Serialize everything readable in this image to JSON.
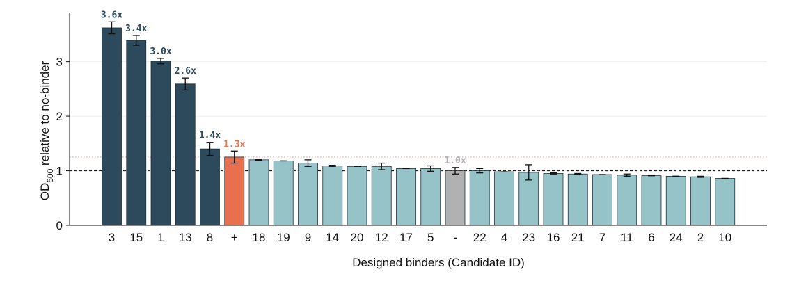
{
  "chart_data": {
    "type": "bar",
    "title": "",
    "xlabel": "Designed binders (Candidate ID)",
    "ylabel": {
      "prefix": "OD",
      "subscript": "600",
      "suffix": " relative to no-binder"
    },
    "ylim": [
      0,
      3.9
    ],
    "yticks": [
      0,
      1,
      2,
      3
    ],
    "grid": "horizontal, light",
    "reference_lines": [
      {
        "y": 1.0,
        "style": "dashed",
        "color": "#222222"
      },
      {
        "y": 1.25,
        "style": "dotted",
        "color": "#E8A0A0"
      }
    ],
    "categories": [
      "3",
      "15",
      "1",
      "13",
      "8",
      "+",
      "18",
      "19",
      "9",
      "14",
      "20",
      "12",
      "17",
      "5",
      "-",
      "22",
      "4",
      "23",
      "16",
      "21",
      "7",
      "11",
      "6",
      "24",
      "2",
      "10"
    ],
    "values": [
      3.62,
      3.39,
      3.01,
      2.59,
      1.4,
      1.25,
      1.2,
      1.18,
      1.14,
      1.09,
      1.08,
      1.08,
      1.04,
      1.04,
      1.0,
      1.0,
      0.98,
      0.97,
      0.95,
      0.94,
      0.93,
      0.92,
      0.91,
      0.9,
      0.89,
      0.86
    ],
    "errors": [
      0.11,
      0.09,
      0.05,
      0.11,
      0.12,
      0.11,
      0.01,
      0.0,
      0.06,
      0.01,
      0.0,
      0.06,
      0.0,
      0.05,
      0.06,
      0.04,
      0.0,
      0.14,
      0.01,
      0.01,
      0.0,
      0.02,
      0.0,
      0.0,
      0.01,
      0.0
    ],
    "groups": [
      "hit",
      "hit",
      "hit",
      "hit",
      "hit",
      "positive",
      "other",
      "other",
      "other",
      "other",
      "other",
      "other",
      "other",
      "other",
      "negative",
      "other",
      "other",
      "other",
      "other",
      "other",
      "other",
      "other",
      "other",
      "other",
      "other",
      "other"
    ],
    "colors": {
      "hit": "#2C4A5C",
      "positive": "#E8704F",
      "negative": "#B1B1B1",
      "other": "#95C3C7"
    },
    "annotations": [
      {
        "category": "3",
        "text": "3.6x",
        "color": "#2C4A5C"
      },
      {
        "category": "15",
        "text": "3.4x",
        "color": "#2C4A5C"
      },
      {
        "category": "1",
        "text": "3.0x",
        "color": "#2C4A5C"
      },
      {
        "category": "13",
        "text": "2.6x",
        "color": "#2C4A5C"
      },
      {
        "category": "8",
        "text": "1.4x",
        "color": "#2C4A5C"
      },
      {
        "category": "+",
        "text": "1.3x",
        "color": "#E8704F"
      },
      {
        "category": "-",
        "text": "1.0x",
        "color": "#B1B1B1"
      }
    ]
  }
}
